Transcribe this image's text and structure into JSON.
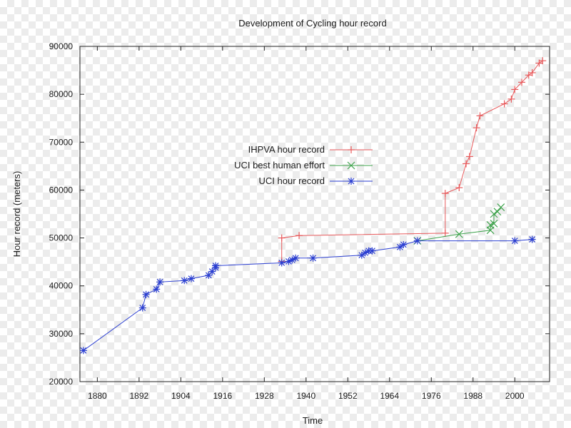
{
  "chart_data": {
    "type": "line",
    "title": "Development of Cycling hour record",
    "xlabel": "Time",
    "ylabel": "Hour record (meters)",
    "xlim": [
      1875,
      2010
    ],
    "ylim": [
      20000,
      90000
    ],
    "x_ticks": [
      1880,
      1892,
      1904,
      1916,
      1928,
      1940,
      1952,
      1964,
      1976,
      1988,
      2000
    ],
    "x_tick_labels": [
      "1880",
      "1892",
      "1904",
      "1916",
      "1928",
      "1940",
      "1952",
      "1964",
      "1976",
      "1988",
      "2000"
    ],
    "y_ticks": [
      20000,
      30000,
      40000,
      50000,
      60000,
      70000,
      80000,
      90000
    ],
    "y_tick_labels": [
      "20000",
      "30000",
      "40000",
      "50000",
      "60000",
      "70000",
      "80000",
      "90000"
    ],
    "grid": false,
    "legend_position": "center-left",
    "series": [
      {
        "name": "IHPVA hour record",
        "color": "#e8595b",
        "marker": "plus",
        "points": [
          [
            1933,
            45100
          ],
          [
            1933,
            50000
          ],
          [
            1938,
            50500
          ],
          [
            1980,
            51000
          ],
          [
            1980,
            59300
          ],
          [
            1984,
            60500
          ],
          [
            1986,
            65500
          ],
          [
            1987,
            67000
          ],
          [
            1989,
            73000
          ],
          [
            1990,
            75500
          ],
          [
            1997,
            78000
          ],
          [
            1999,
            79000
          ],
          [
            2000,
            81000
          ],
          [
            2002,
            82500
          ],
          [
            2004,
            84000
          ],
          [
            2005,
            84500
          ],
          [
            2007,
            86500
          ],
          [
            2008,
            87000
          ]
        ]
      },
      {
        "name": "UCI best human effort",
        "color": "#3fa34d",
        "marker": "cross",
        "points": [
          [
            1972,
            49400
          ],
          [
            1984,
            50800
          ],
          [
            1993,
            51600
          ],
          [
            1993,
            52700
          ],
          [
            1994,
            53000
          ],
          [
            1994,
            55000
          ],
          [
            1995,
            55500
          ],
          [
            1996,
            56400
          ]
        ]
      },
      {
        "name": "UCI hour record",
        "color": "#2a3ed1",
        "marker": "star",
        "points": [
          [
            1876,
            26500
          ],
          [
            1893,
            35400
          ],
          [
            1894,
            38200
          ],
          [
            1897,
            39300
          ],
          [
            1898,
            40800
          ],
          [
            1905,
            41100
          ],
          [
            1907,
            41500
          ],
          [
            1912,
            42200
          ],
          [
            1913,
            43000
          ],
          [
            1914,
            43800
          ],
          [
            1914,
            44200
          ],
          [
            1933,
            44800
          ],
          [
            1935,
            45100
          ],
          [
            1936,
            45400
          ],
          [
            1937,
            45800
          ],
          [
            1942,
            45800
          ],
          [
            1956,
            46400
          ],
          [
            1957,
            46900
          ],
          [
            1958,
            47300
          ],
          [
            1959,
            47300
          ],
          [
            1967,
            48100
          ],
          [
            1968,
            48600
          ],
          [
            1972,
            49400
          ],
          [
            2000,
            49400
          ],
          [
            2005,
            49700
          ]
        ]
      }
    ]
  }
}
